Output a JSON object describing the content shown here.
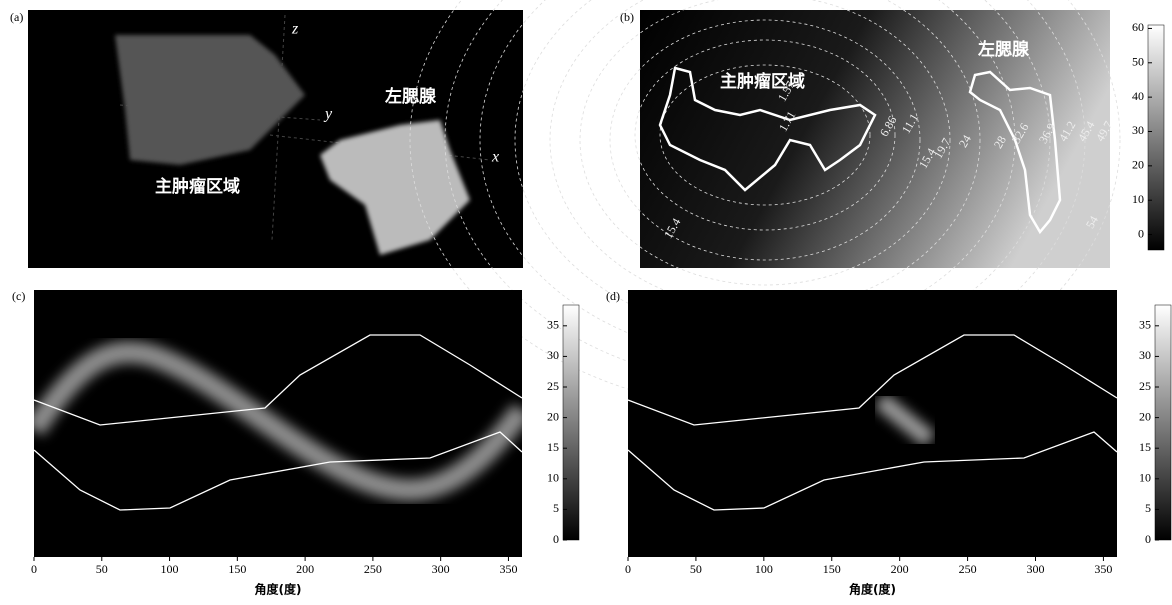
{
  "panels": [
    {
      "label": "(a)",
      "tumor": "主肿瘤区域",
      "gland": "左腮腺",
      "axes": [
        "x",
        "y",
        "z"
      ]
    },
    {
      "label": "(b)",
      "tumor": "主肿瘤区域",
      "gland": "左腮腺",
      "contour_labels": [
        "1.57",
        "1.71",
        "6.86",
        "11.1",
        "15.4",
        "19.7",
        "24",
        "28",
        "32.6",
        "36.9",
        "41.2",
        "45.4",
        "49.7",
        "54",
        "15.4"
      ],
      "colorbar": {
        "lim": [
          -4.5,
          61
        ],
        "ticks": [
          0,
          10,
          20,
          30,
          40,
          50,
          60
        ]
      }
    },
    {
      "label": "(c)",
      "xlabel": "角度(度)",
      "xlim": [
        0,
        360
      ],
      "xticks": [
        0,
        50,
        100,
        150,
        200,
        250,
        300,
        350
      ],
      "colorbar": {
        "lim": [
          0,
          38.4
        ],
        "ticks": [
          0,
          5,
          10,
          15,
          20,
          25,
          30,
          35
        ]
      }
    },
    {
      "label": "(d)",
      "xlabel": "角度(度)",
      "xlim": [
        0,
        360
      ],
      "xticks": [
        0,
        50,
        100,
        150,
        200,
        250,
        300,
        350
      ],
      "colorbar": {
        "lim": [
          0,
          38.4
        ],
        "ticks": [
          0,
          5,
          10,
          15,
          20,
          25,
          30,
          35
        ]
      }
    }
  ]
}
